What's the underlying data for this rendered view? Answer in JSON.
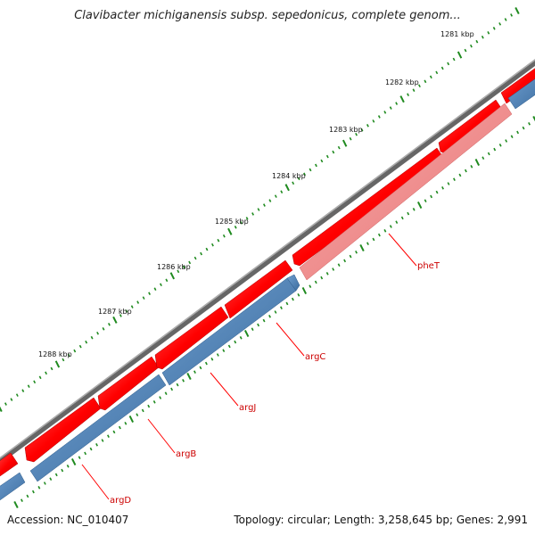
{
  "title": "Clavibacter michiganensis subsp. sepedonicus, complete genom...",
  "footer": {
    "accession": "Accession: NC_010407",
    "summary": "Topology: circular; Length: 3,258,645 bp; Genes: 2,991"
  },
  "scale_labels": [
    "1281 kbp",
    "1282 kbp",
    "1283 kbp",
    "1284 kbp",
    "1285 kbp",
    "1286 kbp",
    "1287 kbp",
    "1288 kbp"
  ],
  "genes": [
    {
      "name": "pheT",
      "strand": "reverse",
      "color": "#f08a8a"
    },
    {
      "name": "argC",
      "strand": "reverse",
      "color": "#4a7fb5"
    },
    {
      "name": "argJ",
      "strand": "reverse",
      "color": "#4a7fb5"
    },
    {
      "name": "argB",
      "strand": "reverse",
      "color": "#4a7fb5"
    },
    {
      "name": "argD",
      "strand": "reverse",
      "color": "#4a7fb5"
    }
  ],
  "colors": {
    "backbone": "#6f6f6f",
    "forward_feature": "#ff0000",
    "reverse_feature": "#4a7fb5",
    "rna_feature": "#f08a8a",
    "tick_major": "#1f8a1f",
    "tick_minor": "#1f8a1f",
    "label_line": "#ff0000",
    "gene_label": "#cc0000"
  }
}
